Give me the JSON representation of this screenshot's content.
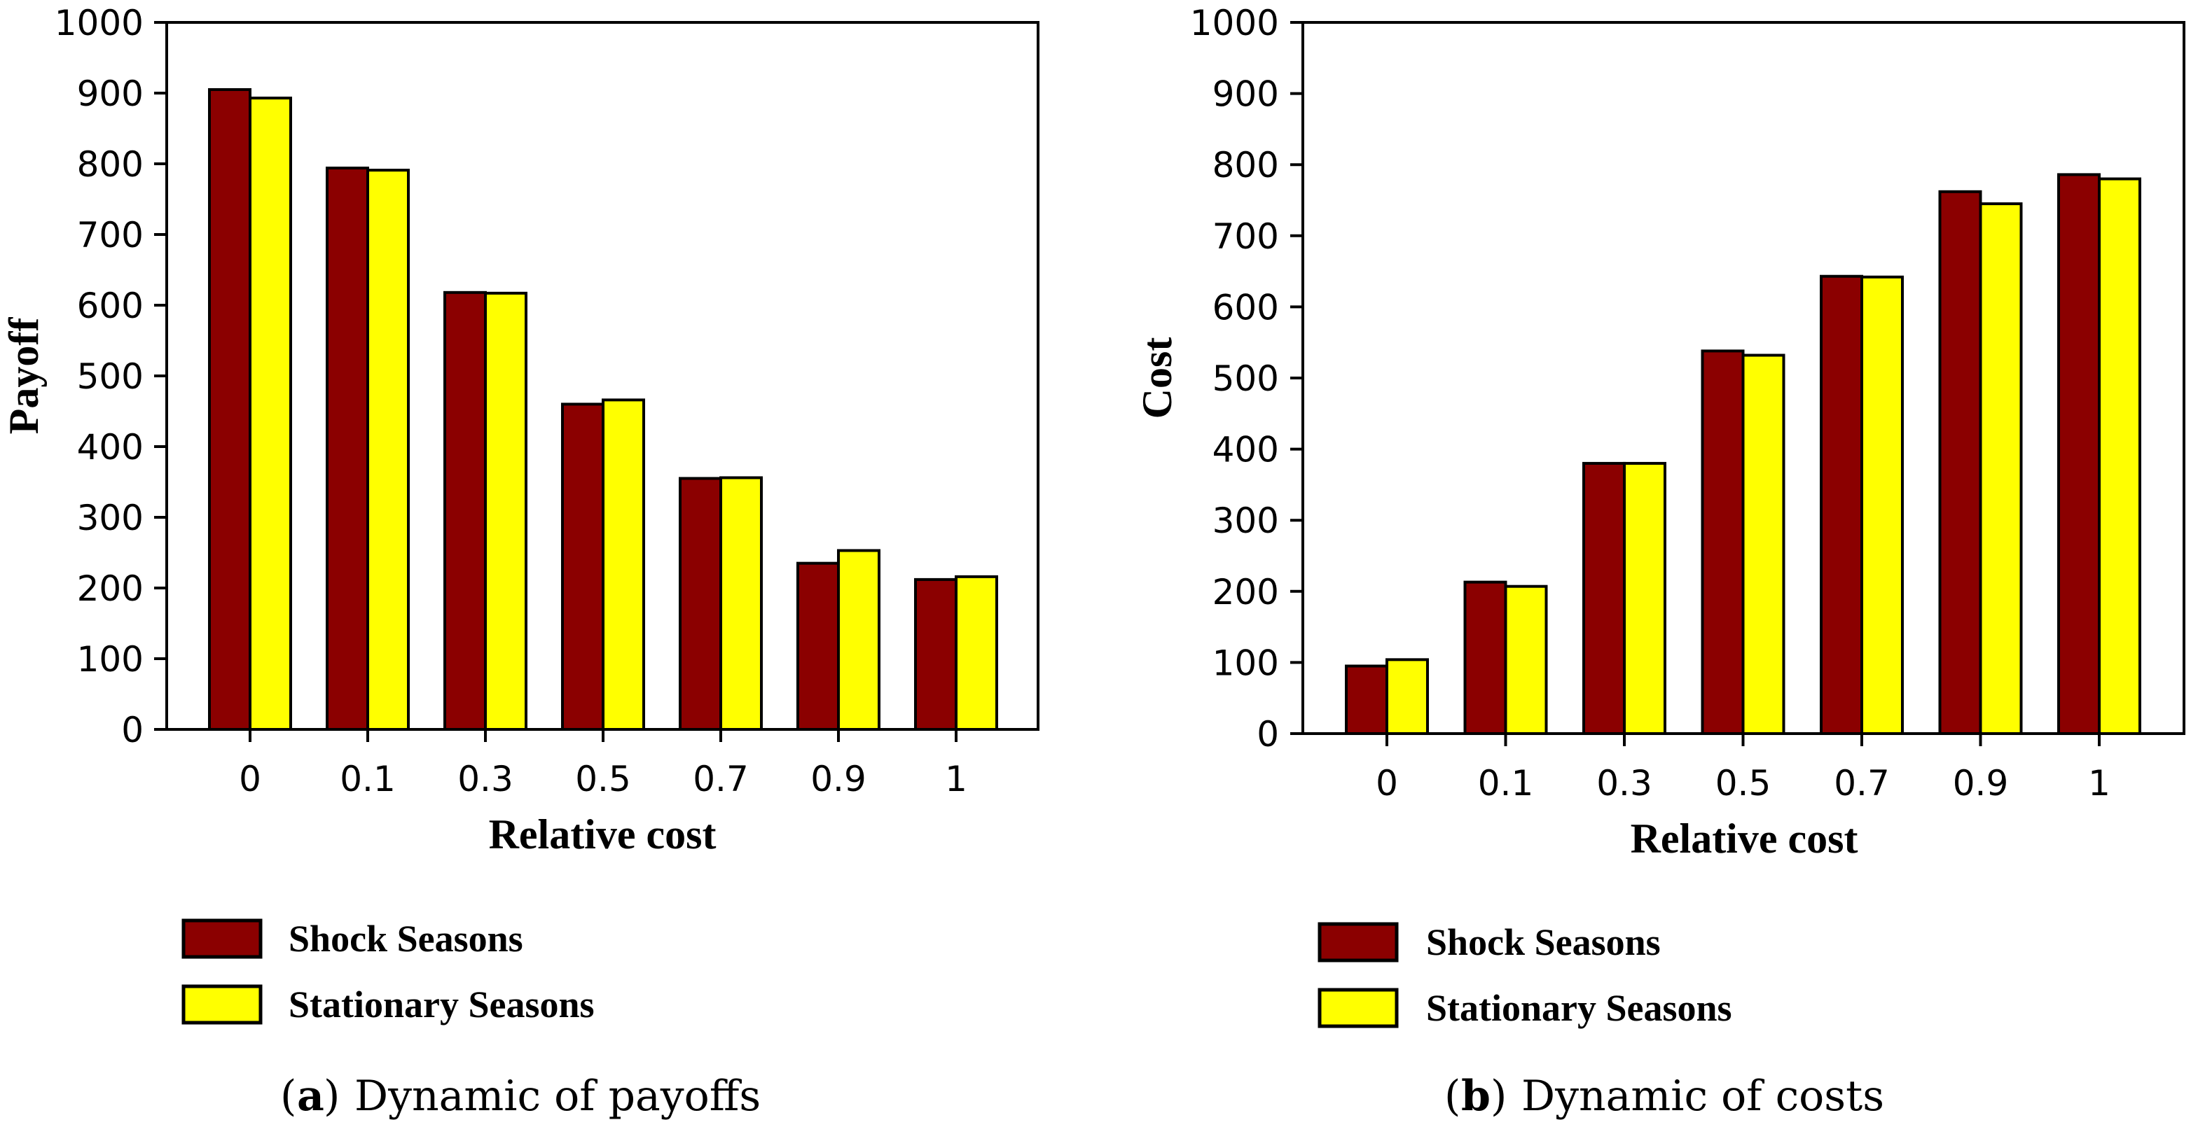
{
  "chart_data": [
    {
      "type": "bar",
      "categories": [
        "0",
        "0.1",
        "0.3",
        "0.5",
        "0.7",
        "0.9",
        "1"
      ],
      "series": [
        {
          "name": "Shock Seasons",
          "values": [
            905,
            794,
            618,
            460,
            355,
            235,
            212
          ]
        },
        {
          "name": "Stationary Seasons",
          "values": [
            893,
            791,
            617,
            466,
            356,
            253,
            216
          ]
        }
      ],
      "xlabel": "Relative cost",
      "ylabel": "Payoff",
      "ylim": [
        0,
        1000
      ],
      "yticks": [
        "0",
        "100",
        "200",
        "300",
        "400",
        "500",
        "600",
        "700",
        "800",
        "900",
        "1000"
      ],
      "caption_letter": "a",
      "caption_text": "Dynamic of payoffs"
    },
    {
      "type": "bar",
      "categories": [
        "0",
        "0.1",
        "0.3",
        "0.5",
        "0.7",
        "0.9",
        "1"
      ],
      "series": [
        {
          "name": "Shock Seasons",
          "values": [
            95,
            213,
            380,
            538,
            643,
            762,
            786
          ]
        },
        {
          "name": "Stationary Seasons",
          "values": [
            104,
            207,
            380,
            532,
            642,
            745,
            780
          ]
        }
      ],
      "xlabel": "Relative cost",
      "ylabel": "Cost",
      "ylim": [
        0,
        1000
      ],
      "yticks": [
        "0",
        "100",
        "200",
        "300",
        "400",
        "500",
        "600",
        "700",
        "800",
        "900",
        "1000"
      ],
      "caption_letter": "b",
      "caption_text": "Dynamic of costs"
    }
  ],
  "colors": {
    "shock": "#8b0000",
    "stationary": "#ffff00",
    "edge": "#000000"
  }
}
